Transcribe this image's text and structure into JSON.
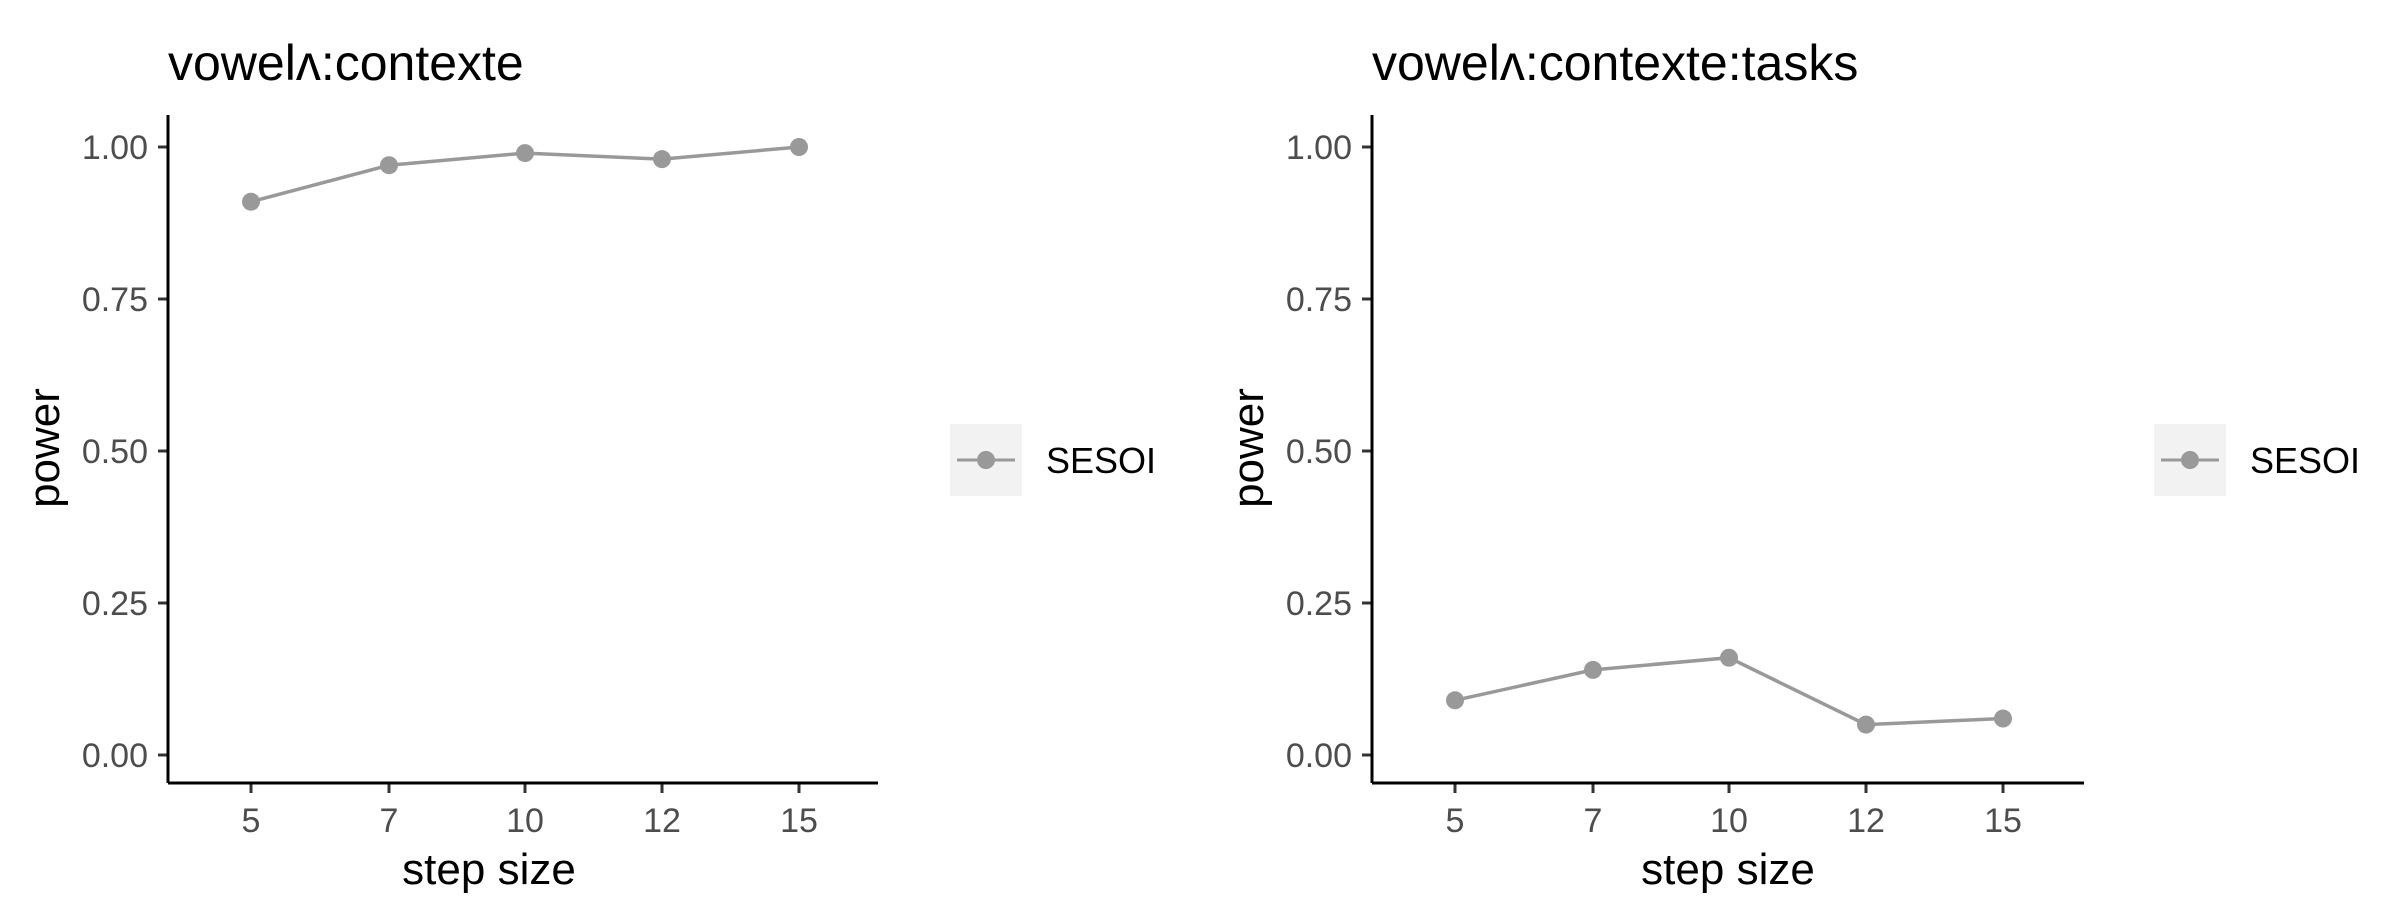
{
  "colors": {
    "series": "#999999",
    "axis": "#000000",
    "tick_text": "#4d4d4d",
    "legend_key_bg": "#f2f2f2"
  },
  "chart_data": [
    {
      "type": "line",
      "title": "vowelʌ:contexte",
      "xlabel": "step size",
      "ylabel": "power",
      "categories": [
        "5",
        "7",
        "10",
        "12",
        "15"
      ],
      "ylim": [
        0,
        1
      ],
      "yticks": [
        "0.00",
        "0.25",
        "0.50",
        "0.75",
        "1.00"
      ],
      "series": [
        {
          "name": "SESOI",
          "values": [
            0.91,
            0.97,
            0.99,
            0.98,
            1.0
          ]
        }
      ],
      "legend": {
        "position": "right",
        "entries": [
          "SESOI"
        ]
      },
      "grid": false
    },
    {
      "type": "line",
      "title": "vowelʌ:contexte:tasks",
      "xlabel": "step size",
      "ylabel": "power",
      "categories": [
        "5",
        "7",
        "10",
        "12",
        "15"
      ],
      "ylim": [
        0,
        1
      ],
      "yticks": [
        "0.00",
        "0.25",
        "0.50",
        "0.75",
        "1.00"
      ],
      "series": [
        {
          "name": "SESOI",
          "values": [
            0.09,
            0.14,
            0.16,
            0.05,
            0.06
          ]
        }
      ],
      "legend": {
        "position": "right",
        "entries": [
          "SESOI"
        ]
      },
      "grid": false
    }
  ]
}
